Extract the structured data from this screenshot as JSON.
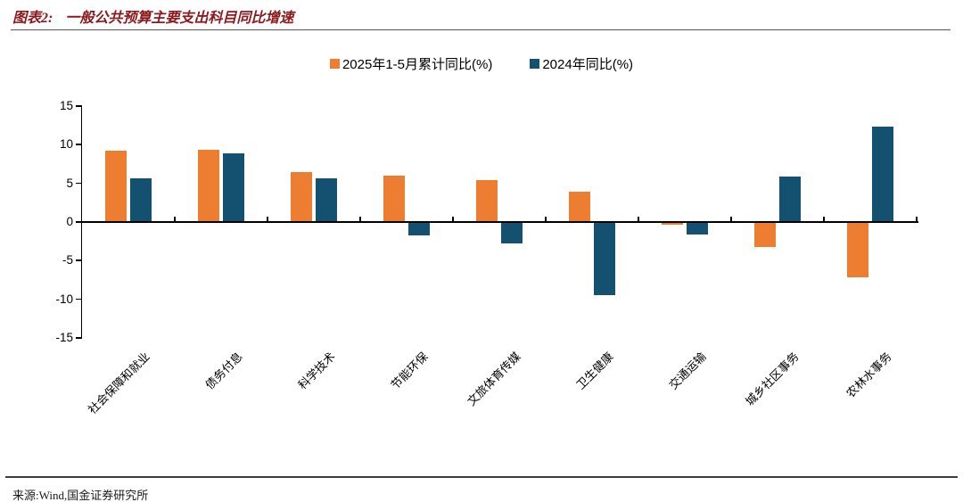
{
  "header": {
    "figure_label": "图表2:",
    "title": "一般公共预算主要支出科目同比增速"
  },
  "chart_data": {
    "type": "bar",
    "title": "一般公共预算主要支出科目同比增速",
    "categories": [
      "社会保障和就业",
      "债务付息",
      "科学技术",
      "节能环保",
      "文旅体育传媒",
      "卫生健康",
      "交通运输",
      "城乡社区事务",
      "农林水事务"
    ],
    "series": [
      {
        "name": "2025年1-5月累计同比(%)",
        "color": "#ED7D31",
        "values": [
          9.2,
          9.3,
          6.5,
          6.0,
          5.4,
          3.9,
          -0.2,
          -3.1,
          -7.0
        ]
      },
      {
        "name": "2024年同比(%)",
        "color": "#14506F",
        "values": [
          5.6,
          8.9,
          5.7,
          -1.6,
          -2.6,
          -9.3,
          -1.5,
          5.9,
          12.4
        ]
      }
    ],
    "ylim": [
      -15,
      15
    ],
    "ytick_step": 5,
    "grid": false,
    "legend_position": "top-center",
    "xlabel": "",
    "ylabel": ""
  },
  "footer": {
    "source": "来源:Wind,国金证券研究所"
  },
  "colors": {
    "title": "#8b1a1e",
    "axis": "#000000",
    "series_2025": "#ED7D31",
    "series_2024": "#14506F"
  }
}
